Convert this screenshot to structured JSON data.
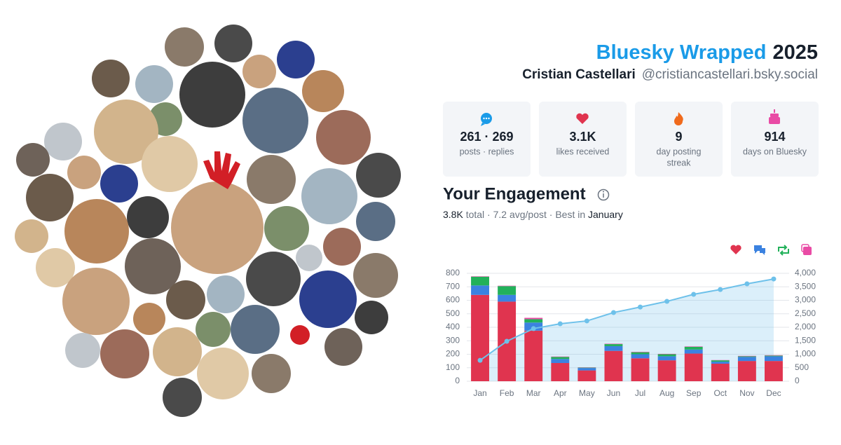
{
  "header": {
    "title": "Bluesky Wrapped",
    "year": "2025",
    "name": "Cristian Castellari",
    "handle": "@cristiancastellari.bsky.social"
  },
  "stats": [
    {
      "value": "261 · 269",
      "label": [
        "posts · replies"
      ]
    },
    {
      "value": "3.1K",
      "label": [
        "likes received"
      ]
    },
    {
      "value": "9",
      "label": [
        "day posting",
        "streak"
      ]
    },
    {
      "value": "914",
      "label": [
        "days on Bluesky"
      ]
    }
  ],
  "engagement": {
    "title": "Your Engagement",
    "summary": [
      "3.8K",
      " total · 7.2 avg/post · Best in ",
      "January"
    ]
  },
  "chart_data": {
    "type": "bar",
    "stacked": true,
    "categories": [
      "Jan",
      "Feb",
      "Mar",
      "Apr",
      "May",
      "Jun",
      "Jul",
      "Aug",
      "Sep",
      "Oct",
      "Nov",
      "Dec"
    ],
    "series": [
      {
        "color": "#e0344f",
        "values": [
          640,
          590,
          375,
          135,
          80,
          225,
          170,
          155,
          205,
          130,
          150,
          150
        ]
      },
      {
        "color": "#3b82e0",
        "values": [
          70,
          50,
          60,
          30,
          18,
          35,
          30,
          30,
          30,
          15,
          30,
          35
        ]
      },
      {
        "color": "#22b15a",
        "values": [
          65,
          65,
          25,
          15,
          3,
          15,
          15,
          15,
          20,
          10,
          5,
          5
        ]
      },
      {
        "color": "#e94ba5",
        "values": [
          3,
          3,
          10,
          3,
          2,
          3,
          3,
          3,
          3,
          2,
          3,
          3
        ]
      },
      {
        "type": "line",
        "axis": "y2",
        "color": "#6ec1ea",
        "values": [
          775,
          1480,
          1950,
          2130,
          2235,
          2545,
          2750,
          2960,
          3220,
          3400,
          3610,
          3790
        ]
      }
    ],
    "ylim": [
      0,
      800
    ],
    "yticks": [
      0,
      100,
      200,
      300,
      400,
      500,
      600,
      700,
      800
    ],
    "y2lim": [
      0,
      4000
    ],
    "y2ticks": [
      0,
      500,
      {
        "value": 1000,
        "label": "1,000"
      },
      {
        "value": 1500,
        "label": "1,500"
      },
      {
        "value": 2000,
        "label": "2,000"
      },
      {
        "value": 2500,
        "label": "2,500"
      },
      {
        "value": 3000,
        "label": "3,000"
      },
      {
        "value": 3500,
        "label": "3,500"
      },
      {
        "value": 4000,
        "label": "4,000"
      }
    ],
    "grid": true
  }
}
